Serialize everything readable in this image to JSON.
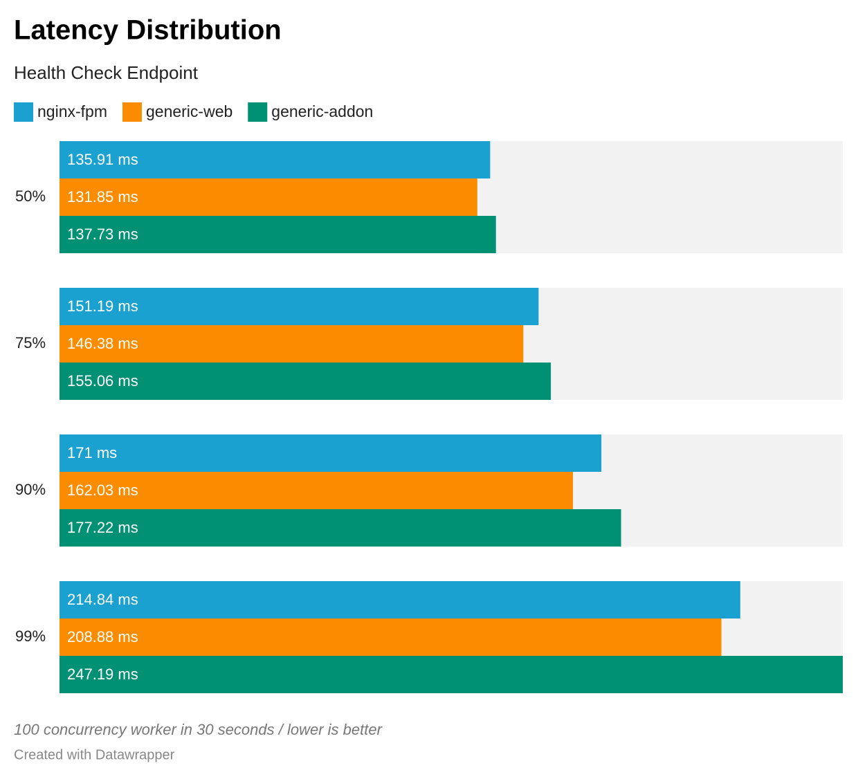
{
  "chart_data": {
    "type": "bar",
    "horizontal": true,
    "title": "Latency Distribution",
    "subtitle": "Health Check Endpoint",
    "note": "100 concurrency worker in 30 seconds / lower is better",
    "credit": "Created with Datawrapper",
    "categories": [
      "50%",
      "75%",
      "90%",
      "99%"
    ],
    "series": [
      {
        "name": "nginx-fpm",
        "color": "#1aa1d0",
        "values": [
          135.91,
          151.19,
          171,
          214.84
        ],
        "value_labels": [
          "135.91 ms",
          "151.19 ms",
          "171 ms",
          "214.84 ms"
        ]
      },
      {
        "name": "generic-web",
        "color": "#fb8c00",
        "values": [
          131.85,
          146.38,
          162.03,
          208.88
        ],
        "value_labels": [
          "131.85 ms",
          "146.38 ms",
          "162.03 ms",
          "208.88 ms"
        ]
      },
      {
        "name": "generic-addon",
        "color": "#009073",
        "values": [
          137.73,
          155.06,
          177.22,
          247.19
        ],
        "value_labels": [
          "137.73 ms",
          "155.06 ms",
          "177.22 ms",
          "247.19 ms"
        ]
      }
    ],
    "xlim": [
      0,
      247.19
    ],
    "track_color": "#f2f2f2"
  }
}
